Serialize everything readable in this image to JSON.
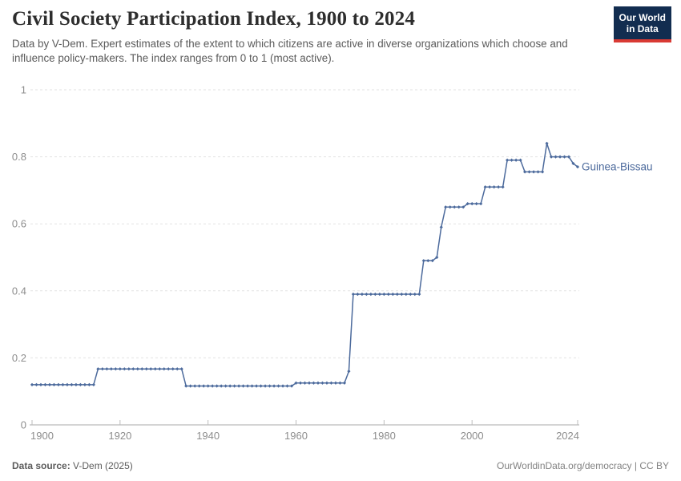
{
  "header": {
    "title": "Civil Society Participation Index, 1900 to 2024",
    "subtitle": "Data by V-Dem. Expert estimates of the extent to which citizens are active in diverse organizations which choose and influence policy-makers. The index ranges from 0 to 1 (most active).",
    "logo": {
      "line1": "Our World",
      "line2": "in Data",
      "bg_color": "#122d50",
      "accent_color": "#d93a34"
    }
  },
  "chart_data": {
    "type": "line",
    "title": "Civil Society Participation Index, 1900 to 2024",
    "xlabel": "",
    "ylabel": "",
    "xlim": [
      1900,
      2024
    ],
    "ylim": [
      0,
      1
    ],
    "x_ticks": [
      1900,
      1920,
      1940,
      1960,
      1980,
      2000,
      2024
    ],
    "y_ticks": [
      0,
      0.2,
      0.4,
      0.6,
      0.8,
      1
    ],
    "grid": "dashed-horizontal",
    "legend_position": "end-of-line",
    "colors": {
      "line": "#4c6a9c",
      "grid": "#e2e2e2",
      "axis": "#a8a8a8",
      "tick_text": "#8d8d8d"
    },
    "series": [
      {
        "name": "Guinea-Bissau",
        "color": "#4c6a9c",
        "points": [
          [
            1900,
            0.12
          ],
          [
            1901,
            0.12
          ],
          [
            1902,
            0.12
          ],
          [
            1903,
            0.12
          ],
          [
            1904,
            0.12
          ],
          [
            1905,
            0.12
          ],
          [
            1906,
            0.12
          ],
          [
            1907,
            0.12
          ],
          [
            1908,
            0.12
          ],
          [
            1909,
            0.12
          ],
          [
            1910,
            0.12
          ],
          [
            1911,
            0.12
          ],
          [
            1912,
            0.12
          ],
          [
            1913,
            0.12
          ],
          [
            1914,
            0.12
          ],
          [
            1915,
            0.167
          ],
          [
            1916,
            0.167
          ],
          [
            1917,
            0.167
          ],
          [
            1918,
            0.167
          ],
          [
            1919,
            0.167
          ],
          [
            1920,
            0.167
          ],
          [
            1921,
            0.167
          ],
          [
            1922,
            0.167
          ],
          [
            1923,
            0.167
          ],
          [
            1924,
            0.167
          ],
          [
            1925,
            0.167
          ],
          [
            1926,
            0.167
          ],
          [
            1927,
            0.167
          ],
          [
            1928,
            0.167
          ],
          [
            1929,
            0.167
          ],
          [
            1930,
            0.167
          ],
          [
            1931,
            0.167
          ],
          [
            1932,
            0.167
          ],
          [
            1933,
            0.167
          ],
          [
            1934,
            0.167
          ],
          [
            1935,
            0.116
          ],
          [
            1936,
            0.116
          ],
          [
            1937,
            0.116
          ],
          [
            1938,
            0.116
          ],
          [
            1939,
            0.116
          ],
          [
            1940,
            0.116
          ],
          [
            1941,
            0.116
          ],
          [
            1942,
            0.116
          ],
          [
            1943,
            0.116
          ],
          [
            1944,
            0.116
          ],
          [
            1945,
            0.116
          ],
          [
            1946,
            0.116
          ],
          [
            1947,
            0.116
          ],
          [
            1948,
            0.116
          ],
          [
            1949,
            0.116
          ],
          [
            1950,
            0.116
          ],
          [
            1951,
            0.116
          ],
          [
            1952,
            0.116
          ],
          [
            1953,
            0.116
          ],
          [
            1954,
            0.116
          ],
          [
            1955,
            0.116
          ],
          [
            1956,
            0.116
          ],
          [
            1957,
            0.116
          ],
          [
            1958,
            0.116
          ],
          [
            1959,
            0.116
          ],
          [
            1960,
            0.125
          ],
          [
            1961,
            0.125
          ],
          [
            1962,
            0.125
          ],
          [
            1963,
            0.125
          ],
          [
            1964,
            0.125
          ],
          [
            1965,
            0.125
          ],
          [
            1966,
            0.125
          ],
          [
            1967,
            0.125
          ],
          [
            1968,
            0.125
          ],
          [
            1969,
            0.125
          ],
          [
            1970,
            0.125
          ],
          [
            1971,
            0.125
          ],
          [
            1972,
            0.16
          ],
          [
            1973,
            0.39
          ],
          [
            1974,
            0.39
          ],
          [
            1975,
            0.39
          ],
          [
            1976,
            0.39
          ],
          [
            1977,
            0.39
          ],
          [
            1978,
            0.39
          ],
          [
            1979,
            0.39
          ],
          [
            1980,
            0.39
          ],
          [
            1981,
            0.39
          ],
          [
            1982,
            0.39
          ],
          [
            1983,
            0.39
          ],
          [
            1984,
            0.39
          ],
          [
            1985,
            0.39
          ],
          [
            1986,
            0.39
          ],
          [
            1987,
            0.39
          ],
          [
            1988,
            0.39
          ],
          [
            1989,
            0.49
          ],
          [
            1990,
            0.49
          ],
          [
            1991,
            0.49
          ],
          [
            1992,
            0.5
          ],
          [
            1993,
            0.59
          ],
          [
            1994,
            0.65
          ],
          [
            1995,
            0.65
          ],
          [
            1996,
            0.65
          ],
          [
            1997,
            0.65
          ],
          [
            1998,
            0.65
          ],
          [
            1999,
            0.66
          ],
          [
            2000,
            0.66
          ],
          [
            2001,
            0.66
          ],
          [
            2002,
            0.66
          ],
          [
            2003,
            0.71
          ],
          [
            2004,
            0.71
          ],
          [
            2005,
            0.71
          ],
          [
            2006,
            0.71
          ],
          [
            2007,
            0.71
          ],
          [
            2008,
            0.79
          ],
          [
            2009,
            0.79
          ],
          [
            2010,
            0.79
          ],
          [
            2011,
            0.79
          ],
          [
            2012,
            0.755
          ],
          [
            2013,
            0.755
          ],
          [
            2014,
            0.755
          ],
          [
            2015,
            0.755
          ],
          [
            2016,
            0.755
          ],
          [
            2017,
            0.84
          ],
          [
            2018,
            0.8
          ],
          [
            2019,
            0.8
          ],
          [
            2020,
            0.8
          ],
          [
            2021,
            0.8
          ],
          [
            2022,
            0.8
          ],
          [
            2023,
            0.78
          ],
          [
            2024,
            0.77
          ]
        ]
      }
    ]
  },
  "footer": {
    "source_label": "Data source:",
    "source_value": "V-Dem (2025)",
    "attribution": "OurWorldinData.org/democracy | CC BY"
  }
}
